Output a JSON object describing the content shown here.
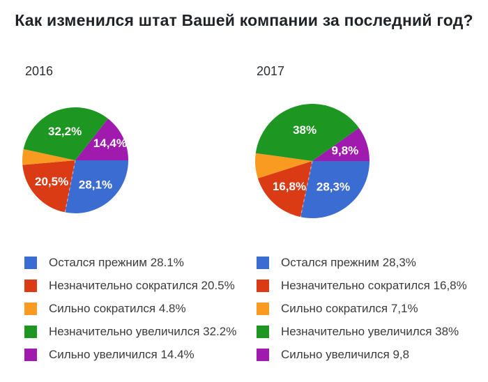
{
  "title": "Как изменился штат Вашей компании за последний год?",
  "chart_data": [
    {
      "type": "pie",
      "title": "2016",
      "unit": "%",
      "start_angle_deg": 0,
      "direction": "clockwise",
      "radius_px": 76,
      "categories": [
        "Остался прежним",
        "Незначительно сократился",
        "Сильно сократился",
        "Незначительно увеличился",
        "Сильно увеличился"
      ],
      "values": [
        28.1,
        20.5,
        4.8,
        32.2,
        14.4
      ],
      "colors": [
        "#3b6cd1",
        "#da3b15",
        "#f89b20",
        "#1d9722",
        "#a01bad"
      ],
      "slice_labels": [
        "28,1%",
        "20,5%",
        "",
        "32,2%",
        "14,4%"
      ],
      "slice_label_r": [
        0.6,
        0.6,
        0,
        0.58,
        0.73
      ],
      "legend_labels": [
        "Остался прежним 28.1%",
        "Незначительно сократился 20.5%",
        "Сильно сократился 4.8%",
        "Незначительно увеличился 32.2%",
        "Сильно увеличился 14.4%"
      ],
      "legend_position": "bottom-left"
    },
    {
      "type": "pie",
      "title": "2017",
      "unit": "%",
      "start_angle_deg": 0,
      "direction": "clockwise",
      "radius_px": 82,
      "categories": [
        "Остался прежним",
        "Незначительно сократился",
        "Сильно сократился",
        "Незначительно увеличился",
        "Сильно увеличился"
      ],
      "values": [
        28.3,
        16.8,
        7.1,
        38,
        9.8
      ],
      "colors": [
        "#3b6cd1",
        "#da3b15",
        "#f89b20",
        "#1d9722",
        "#a01bad"
      ],
      "slice_labels": [
        "28,3%",
        "16,8%",
        "",
        "38%",
        "9,8%"
      ],
      "slice_label_r": [
        0.58,
        0.6,
        0,
        0.56,
        0.6
      ],
      "legend_labels": [
        "Остался прежним 28,3%",
        "Незначительно сократился 16,8%",
        "Сильно сократился 7,1%",
        "Незначительно увеличился 38%",
        "Сильно увеличился 9,8"
      ],
      "legend_position": "bottom-left"
    }
  ]
}
